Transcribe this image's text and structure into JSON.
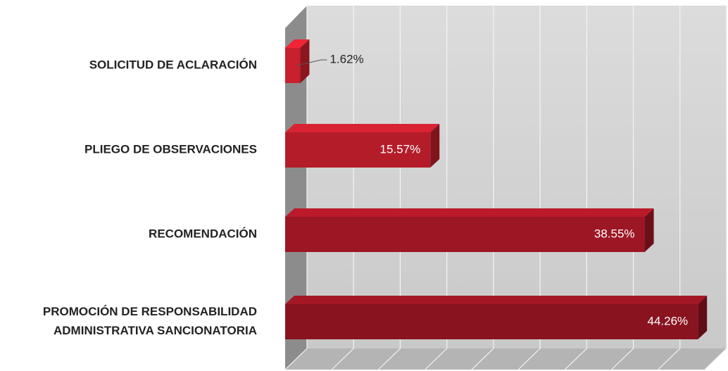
{
  "chart_data": {
    "type": "bar3d_horizontal",
    "categories": [
      "SOLICITUD DE ACLARACIÓN",
      "PLIEGO DE OBSERVACIONES",
      "RECOMENDACIÓN",
      "PROMOCIÓN DE RESPONSABILIDAD ADMINISTRATIVA SANCIONATORIA"
    ],
    "values": [
      1.62,
      15.57,
      38.55,
      44.26
    ],
    "value_labels": [
      "1.62%",
      "15.57%",
      "38.55%",
      "44.26%"
    ],
    "colors": [
      "#c8202e",
      "#b51c2a",
      "#9c1624",
      "#8a1320"
    ],
    "xlim": [
      0,
      45
    ],
    "xticks": [
      0,
      5,
      10,
      15,
      20,
      25,
      30,
      35,
      40,
      45
    ],
    "grid": true
  }
}
